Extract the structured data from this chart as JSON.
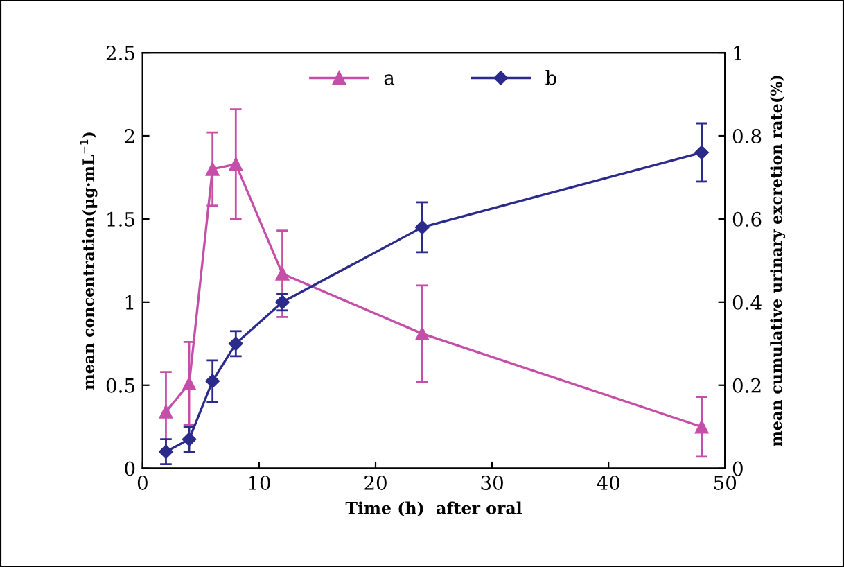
{
  "chart_data": {
    "type": "line",
    "xlabel": "Time (h)  after oral",
    "ylabel": "mean concentration(μg·mL$^{−1}$)",
    "y2label": "mean cumulative urinary excretion rate(%)",
    "x": [
      2,
      4,
      6,
      8,
      12,
      24,
      48
    ],
    "series": [
      {
        "name": "a",
        "color": "#c54fa8",
        "marker": "triangle",
        "values": [
          0.34,
          0.51,
          1.8,
          1.83,
          1.17,
          0.81,
          0.25
        ],
        "errors": [
          0.24,
          0.25,
          0.22,
          0.33,
          0.26,
          0.29,
          0.18
        ]
      },
      {
        "name": "b",
        "color": "#2b2b8c",
        "marker": "diamond",
        "axis": "y2",
        "values": [
          0.04,
          0.07,
          0.21,
          0.3,
          0.4,
          0.58,
          0.76
        ],
        "errors": [
          0.03,
          0.03,
          0.05,
          0.03,
          0.02,
          0.06,
          0.07
        ]
      }
    ],
    "xlim": [
      0,
      50
    ],
    "xticks": [
      0,
      10,
      20,
      30,
      40,
      50
    ],
    "ylim": [
      0,
      2.5
    ],
    "yticks": [
      0,
      0.5,
      1,
      1.5,
      2,
      2.5
    ],
    "y2lim": [
      0,
      1
    ],
    "y2ticks": [
      0,
      0.2,
      0.4,
      0.6,
      0.8,
      1
    ],
    "grid": false,
    "legend": "top",
    "line_style": "solid"
  }
}
